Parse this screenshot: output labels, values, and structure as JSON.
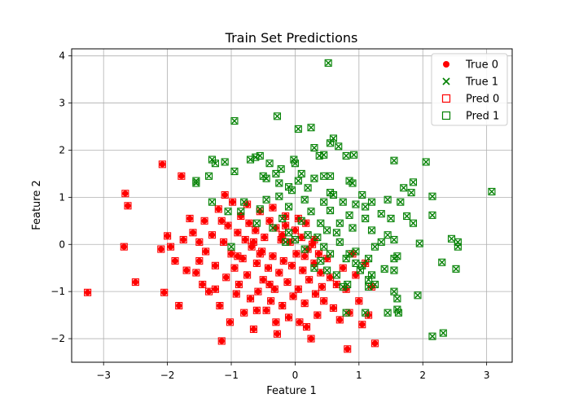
{
  "chart_data": {
    "type": "scatter",
    "title": "Train Set Predictions",
    "xlabel": "Feature 1",
    "ylabel": "Feature 2",
    "xlim": [
      -3.5,
      3.4
    ],
    "ylim": [
      -2.5,
      4.15
    ],
    "xticks": [
      -3,
      -2,
      -1,
      0,
      1,
      2,
      3
    ],
    "yticks": [
      -2,
      -1,
      0,
      1,
      2,
      3,
      4
    ],
    "grid": true,
    "legend_position": "top-right",
    "colors": {
      "class0": "#ff0000",
      "class1": "#008000"
    },
    "legend": [
      {
        "label": "True 0",
        "marker": "circle",
        "color": "#ff0000"
      },
      {
        "label": "True 1",
        "marker": "x",
        "color": "#008000"
      },
      {
        "label": "Pred 0",
        "marker": "square-open",
        "color": "#ff0000"
      },
      {
        "label": "Pred 1",
        "marker": "square-open",
        "color": "#008000"
      }
    ],
    "class0_points": [
      [
        -3.25,
        -1.02
      ],
      [
        -2.68,
        -0.05
      ],
      [
        -2.5,
        -0.8
      ],
      [
        -2.1,
        -0.1
      ],
      [
        -2.05,
        -1.02
      ],
      [
        -2.0,
        0.18
      ],
      [
        -1.95,
        -0.05
      ],
      [
        -1.88,
        -0.35
      ],
      [
        -1.82,
        -1.3
      ],
      [
        -1.75,
        0.1
      ],
      [
        -1.7,
        -0.55
      ],
      [
        -1.65,
        0.55
      ],
      [
        -1.6,
        0.25
      ],
      [
        -1.55,
        -0.6
      ],
      [
        -1.5,
        0.05
      ],
      [
        -1.45,
        -0.85
      ],
      [
        -1.42,
        0.5
      ],
      [
        -1.4,
        -0.15
      ],
      [
        -1.35,
        -1.0
      ],
      [
        -1.3,
        0.2
      ],
      [
        -1.25,
        -0.45
      ],
      [
        -1.2,
        0.75
      ],
      [
        -1.18,
        -1.3
      ],
      [
        -1.15,
        -2.05
      ],
      [
        -1.12,
        0.05
      ],
      [
        -1.08,
        -0.7
      ],
      [
        -1.05,
        0.4
      ],
      [
        -1.02,
        -1.65
      ],
      [
        -1.0,
        -0.2
      ],
      [
        -0.98,
        0.9
      ],
      [
        -0.95,
        -0.5
      ],
      [
        -0.92,
        -1.05
      ],
      [
        -0.9,
        0.25
      ],
      [
        -0.88,
        -0.85
      ],
      [
        -0.85,
        0.6
      ],
      [
        -0.82,
        -0.3
      ],
      [
        -0.8,
        -1.45
      ],
      [
        -0.78,
        0.1
      ],
      [
        -0.75,
        -0.65
      ],
      [
        -0.72,
        0.45
      ],
      [
        -0.7,
        -1.15
      ],
      [
        -0.68,
        -0.05
      ],
      [
        -0.65,
        -1.8
      ],
      [
        -0.62,
        0.3
      ],
      [
        -0.6,
        -0.4
      ],
      [
        -0.58,
        -1.0
      ],
      [
        -0.55,
        0.7
      ],
      [
        -0.52,
        -0.15
      ],
      [
        -0.5,
        -0.75
      ],
      [
        -0.48,
        0.15
      ],
      [
        -0.45,
        -1.4
      ],
      [
        -0.42,
        -0.5
      ],
      [
        -0.4,
        0.5
      ],
      [
        -0.38,
        -1.2
      ],
      [
        -0.35,
        -0.25
      ],
      [
        -0.32,
        -0.95
      ],
      [
        -0.3,
        0.35
      ],
      [
        -0.28,
        -1.9
      ],
      [
        -0.25,
        -0.6
      ],
      [
        -0.22,
        0.1
      ],
      [
        -0.2,
        -1.3
      ],
      [
        -0.18,
        -0.35
      ],
      [
        -0.15,
        0.6
      ],
      [
        -0.12,
        -0.8
      ],
      [
        -0.1,
        -1.55
      ],
      [
        -0.08,
        0.05
      ],
      [
        -0.05,
        -0.45
      ],
      [
        -0.03,
        -1.1
      ],
      [
        0.0,
        0.3
      ],
      [
        0.02,
        -0.2
      ],
      [
        0.05,
        -0.95
      ],
      [
        0.07,
        -1.65
      ],
      [
        0.1,
        0.15
      ],
      [
        0.12,
        -0.55
      ],
      [
        0.15,
        -1.25
      ],
      [
        0.17,
        0.45
      ],
      [
        0.2,
        -0.1
      ],
      [
        0.22,
        -0.75
      ],
      [
        0.25,
        -2.0
      ],
      [
        0.27,
        0.0
      ],
      [
        0.3,
        -0.4
      ],
      [
        0.32,
        -1.05
      ],
      [
        0.35,
        -1.5
      ],
      [
        0.37,
        -0.2
      ],
      [
        0.4,
        -0.6
      ],
      [
        0.42,
        -0.9
      ],
      [
        0.45,
        -1.2
      ],
      [
        0.5,
        -0.3
      ],
      [
        0.55,
        -0.7
      ],
      [
        0.6,
        -1.35
      ],
      [
        0.65,
        -0.85
      ],
      [
        0.7,
        -1.6
      ],
      [
        0.75,
        -0.5
      ],
      [
        0.8,
        -0.95
      ],
      [
        0.85,
        -1.45
      ],
      [
        0.9,
        -0.2
      ],
      [
        0.95,
        -0.65
      ],
      [
        1.0,
        -1.2
      ],
      [
        1.05,
        -1.7
      ],
      [
        1.1,
        -0.4
      ],
      [
        1.15,
        -1.5
      ],
      [
        1.2,
        -0.9
      ],
      [
        1.25,
        -2.1
      ],
      [
        0.82,
        -2.22
      ],
      [
        -0.6,
        -1.4
      ],
      [
        -0.3,
        -1.65
      ],
      [
        0.18,
        -1.75
      ],
      [
        -1.25,
        -0.95
      ],
      [
        -0.75,
        0.85
      ],
      [
        -0.35,
        0.78
      ],
      [
        0.05,
        0.55
      ],
      [
        -0.15,
        0.4
      ],
      [
        -2.08,
        1.7
      ],
      [
        -1.78,
        1.45
      ],
      [
        -2.62,
        0.82
      ],
      [
        -2.66,
        1.08
      ],
      [
        -1.1,
        1.05
      ],
      [
        -0.55,
        -0.2
      ],
      [
        -0.2,
        0.2
      ],
      [
        0.3,
        0.1
      ],
      [
        -0.9,
        -0.25
      ],
      [
        -1.5,
        -0.35
      ],
      [
        -0.4,
        -0.85
      ],
      [
        0.15,
        -0.25
      ],
      [
        -0.65,
        0.05
      ],
      [
        -1.15,
        0.5
      ]
    ],
    "class1_points": [
      [
        0.52,
        3.85
      ],
      [
        -0.95,
        2.62
      ],
      [
        -0.28,
        2.72
      ],
      [
        0.05,
        2.45
      ],
      [
        0.25,
        2.48
      ],
      [
        0.6,
        2.25
      ],
      [
        0.55,
        2.15
      ],
      [
        0.68,
        2.08
      ],
      [
        0.3,
        2.05
      ],
      [
        -0.62,
        1.85
      ],
      [
        -0.55,
        1.88
      ],
      [
        -0.7,
        1.8
      ],
      [
        -1.3,
        1.8
      ],
      [
        -1.25,
        1.72
      ],
      [
        -1.1,
        1.75
      ],
      [
        -0.4,
        1.72
      ],
      [
        0.0,
        1.72
      ],
      [
        -0.02,
        1.8
      ],
      [
        0.38,
        1.88
      ],
      [
        0.45,
        1.9
      ],
      [
        0.8,
        1.88
      ],
      [
        0.92,
        1.9
      ],
      [
        1.55,
        1.78
      ],
      [
        2.05,
        1.75
      ],
      [
        -0.95,
        1.55
      ],
      [
        -0.3,
        1.5
      ],
      [
        0.1,
        1.5
      ],
      [
        0.45,
        1.45
      ],
      [
        0.55,
        1.45
      ],
      [
        -0.22,
        1.6
      ],
      [
        -0.5,
        1.45
      ],
      [
        -0.45,
        1.4
      ],
      [
        -1.35,
        1.45
      ],
      [
        -1.55,
        1.35
      ],
      [
        -1.55,
        1.3
      ],
      [
        -0.25,
        1.3
      ],
      [
        0.05,
        1.35
      ],
      [
        0.3,
        1.4
      ],
      [
        0.85,
        1.35
      ],
      [
        0.9,
        1.3
      ],
      [
        1.7,
        1.2
      ],
      [
        1.82,
        1.1
      ],
      [
        1.85,
        1.32
      ],
      [
        2.15,
        1.02
      ],
      [
        3.08,
        1.12
      ],
      [
        -0.1,
        1.22
      ],
      [
        -0.05,
        1.15
      ],
      [
        0.2,
        1.2
      ],
      [
        0.55,
        1.1
      ],
      [
        0.6,
        1.05
      ],
      [
        1.05,
        1.05
      ],
      [
        1.2,
        0.9
      ],
      [
        1.45,
        0.95
      ],
      [
        1.65,
        0.9
      ],
      [
        1.5,
        0.55
      ],
      [
        1.75,
        0.6
      ],
      [
        1.85,
        0.45
      ],
      [
        2.15,
        0.62
      ],
      [
        -1.3,
        0.9
      ],
      [
        -0.8,
        0.9
      ],
      [
        -0.45,
        0.95
      ],
      [
        -0.25,
        1.02
      ],
      [
        0.15,
        0.95
      ],
      [
        0.45,
        0.9
      ],
      [
        0.75,
        0.9
      ],
      [
        0.95,
        0.85
      ],
      [
        1.1,
        0.8
      ],
      [
        1.35,
        0.65
      ],
      [
        -1.05,
        0.7
      ],
      [
        -0.85,
        0.7
      ],
      [
        -0.55,
        0.75
      ],
      [
        -0.1,
        0.8
      ],
      [
        0.25,
        0.7
      ],
      [
        0.55,
        0.72
      ],
      [
        0.85,
        0.62
      ],
      [
        1.1,
        0.55
      ],
      [
        -0.2,
        0.55
      ],
      [
        0.1,
        0.5
      ],
      [
        0.4,
        0.45
      ],
      [
        0.7,
        0.45
      ],
      [
        0.9,
        0.35
      ],
      [
        1.2,
        0.3
      ],
      [
        1.45,
        0.2
      ],
      [
        1.55,
        0.1
      ],
      [
        1.95,
        0.02
      ],
      [
        2.45,
        0.12
      ],
      [
        2.55,
        0.05
      ],
      [
        2.55,
        -0.05
      ],
      [
        2.3,
        -0.38
      ],
      [
        2.52,
        -0.52
      ],
      [
        1.55,
        -0.3
      ],
      [
        1.4,
        -0.52
      ],
      [
        1.55,
        -0.55
      ],
      [
        1.6,
        -0.25
      ],
      [
        1.25,
        -0.05
      ],
      [
        1.15,
        -0.3
      ],
      [
        1.05,
        -0.45
      ],
      [
        1.2,
        -0.65
      ],
      [
        1.15,
        -0.75
      ],
      [
        1.25,
        -0.85
      ],
      [
        1.15,
        -0.9
      ],
      [
        1.02,
        -0.55
      ],
      [
        0.95,
        -0.4
      ],
      [
        0.85,
        -0.2
      ],
      [
        0.8,
        -0.3
      ],
      [
        0.55,
        -0.2
      ],
      [
        0.4,
        -0.35
      ],
      [
        0.3,
        -0.5
      ],
      [
        0.5,
        -0.55
      ],
      [
        0.65,
        -0.65
      ],
      [
        0.75,
        -0.9
      ],
      [
        0.82,
        -0.85
      ],
      [
        1.55,
        -1.0
      ],
      [
        1.92,
        -1.08
      ],
      [
        1.6,
        -1.15
      ],
      [
        1.6,
        -1.38
      ],
      [
        1.62,
        -1.45
      ],
      [
        1.45,
        -1.45
      ],
      [
        1.1,
        -1.45
      ],
      [
        0.8,
        -1.45
      ],
      [
        2.15,
        -1.95
      ],
      [
        2.32,
        -1.88
      ],
      [
        -0.1,
        0.25
      ],
      [
        0.0,
        0.1
      ],
      [
        0.2,
        0.2
      ],
      [
        0.35,
        0.15
      ],
      [
        -0.35,
        0.35
      ],
      [
        -0.6,
        0.45
      ],
      [
        0.45,
        -0.05
      ],
      [
        0.65,
        0.25
      ],
      [
        0.15,
        -0.1
      ],
      [
        -0.15,
        0.05
      ],
      [
        0.95,
        -0.15
      ],
      [
        0.7,
        0.05
      ],
      [
        0.5,
        0.3
      ],
      [
        1.35,
        0.05
      ],
      [
        -1.0,
        -0.05
      ]
    ]
  }
}
